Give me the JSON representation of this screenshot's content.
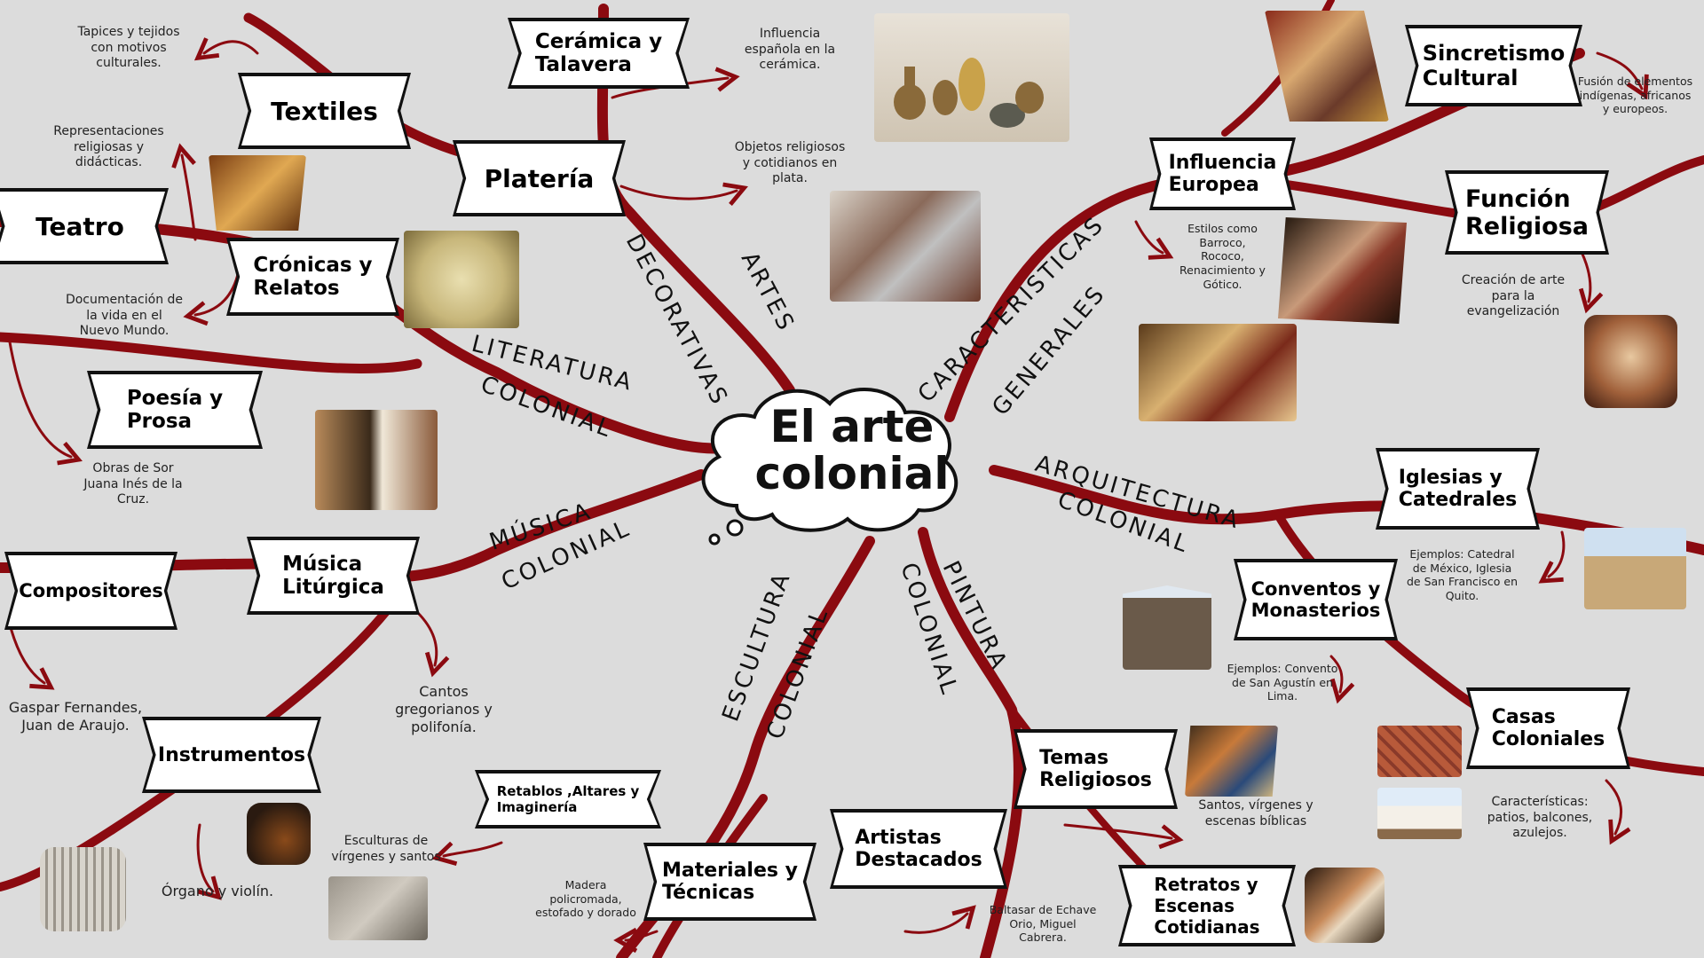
{
  "center": {
    "title": "El arte colonial"
  },
  "colors": {
    "branch": "#8b0a10",
    "box_border": "#111111",
    "background": "#dcdcdc"
  },
  "branches": {
    "artes": "ARTES",
    "decorativas": "DECORATIVAS",
    "literatura": "LITERATURA",
    "colonial_lit": "COLONIAL",
    "musica": "MÚSICA",
    "colonial_mus": "COLONIAL",
    "escultura": "ESCULTURA",
    "colonial_esc": "COLONIAL",
    "pintura": "PINTURA",
    "colonial_pin": "COLONIAL",
    "arquitectura": "ARQUITECTURA",
    "colonial_arq": "COLONIAL",
    "caracteristicas": "CARACTERISTICAS",
    "generales": "GENERALES"
  },
  "nodes": {
    "ceramica": "Cerámica y\nTalavera",
    "textiles": "Textiles",
    "plateria": "Platería",
    "teatro": "Teatro",
    "cronicas": "Crónicas y\nRelatos",
    "poesia": "Poesía y\nProsa",
    "compositores": "Compositores",
    "musica_liturgica": "Música\nLitúrgica",
    "instrumentos": "Instrumentos",
    "retablos": "Retablos ,Altares y\nImaginería",
    "materiales": "Materiales y\nTécnicas",
    "artistas": "Artistas\nDestacados",
    "temas": "Temas\nReligiosos",
    "retratos": "Retratos y\nEscenas\nCotidianas",
    "sincretismo": "Sincretismo\nCultural",
    "influencia": "Influencia\nEuropea",
    "funcion": "Función\nReligiosa",
    "iglesias": "Iglesias y\nCatedrales",
    "conventos": "Conventos y\nMonasterios",
    "casas": "Casas\nColoniales"
  },
  "notes": {
    "tapices": "Tapices y tejidos\ncon motivos\nculturales.",
    "influencia_esp": "Influencia\nespañola en la\ncerámica.",
    "representaciones": "Representaciones\nreligiosas y\ndidácticas.",
    "objetos": "Objetos religiosos\ny cotidianos en\nplata.",
    "documentacion": "Documentación de\nla vida en el\nNuevo Mundo.",
    "sor_juana": "Obras de Sor\nJuana Inés de la\nCruz.",
    "gaspar": "Gaspar Fernandes,\nJuan de Araujo.",
    "cantos": "Cantos\ngregorianos y\npolifonía.",
    "organo": "Órgano y violín.",
    "esculturas": "Esculturas de\nvírgenes y santos",
    "madera": "Madera\npolicromada,\nestofado y dorado",
    "baltasar": "Baltasar de Echave\nOrio, Miguel\nCabrera.",
    "santos": "Santos, vírgenes y\nescenas bíblicas",
    "estilos": "Estilos como\nBarroco,\nRococo,\nRenacimiento y\nGótico.",
    "fusion": "Fusión de elementos\nindígenas, africanos\ny europeos.",
    "creacion": "Creación de arte\npara la\nevangelización",
    "ejemplos_catedral": "Ejemplos: Catedral\nde México, Iglesia\nde San Francisco en\nQuito.",
    "ejemplos_convento": "Ejemplos: Convento\nde San Agustín en\nLima.",
    "caracteristicas_casas": "Características:\npatios, balcones,\nazulejos."
  },
  "images": [
    "ceramics-photo",
    "theater-photo",
    "silver-altar-photo",
    "map-photo",
    "sor-juana-portrait",
    "organ-photo",
    "violin-photo",
    "sculpture-photo",
    "painting-virgin-photo",
    "portrait-scene-photo",
    "casta-painting-photo",
    "baroque-painting-photo",
    "procession-painting-photo",
    "assumption-painting-photo",
    "cathedral-photo",
    "convent-facade-photo",
    "roof-tiles-photo",
    "colonial-house-photo"
  ]
}
